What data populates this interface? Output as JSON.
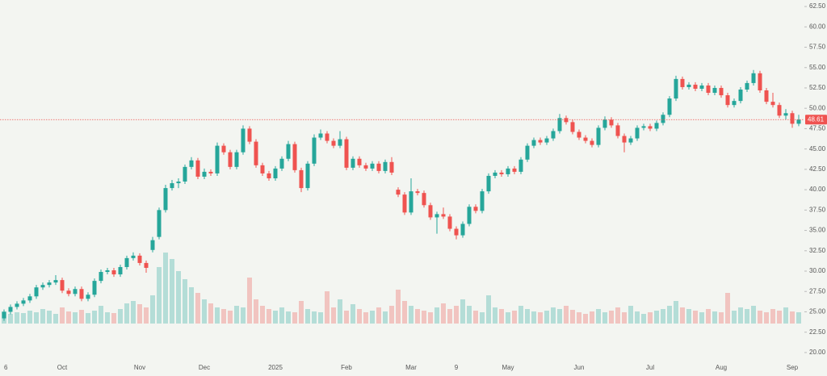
{
  "chart_data": {
    "type": "candlestick",
    "up_color": "#26a69a",
    "down_color": "#ef5350",
    "categories": [
      "6",
      null,
      null,
      null,
      null,
      null,
      null,
      null,
      null,
      "Oct",
      null,
      null,
      null,
      null,
      null,
      null,
      null,
      null,
      null,
      null,
      null,
      "Nov",
      null,
      null,
      null,
      null,
      null,
      null,
      null,
      null,
      null,
      "Dec",
      null,
      null,
      null,
      null,
      null,
      null,
      null,
      null,
      null,
      null,
      "2025",
      null,
      null,
      null,
      null,
      null,
      null,
      null,
      null,
      null,
      null,
      "Feb",
      null,
      null,
      null,
      null,
      null,
      null,
      null,
      null,
      null,
      "Mar",
      null,
      null,
      null,
      null,
      null,
      null,
      "9",
      null,
      null,
      null,
      null,
      null,
      null,
      null,
      "May",
      null,
      null,
      null,
      null,
      null,
      null,
      null,
      null,
      null,
      null,
      "Jun",
      null,
      null,
      null,
      null,
      null,
      null,
      null,
      null,
      null,
      null,
      "Jul",
      null,
      null,
      null,
      null,
      null,
      null,
      null,
      null,
      null,
      null,
      "Aug",
      null,
      null,
      null,
      null,
      null,
      null,
      null,
      null,
      null,
      null,
      "Sep",
      null
    ],
    "ohlc": [
      [
        24.2,
        25.3,
        23.9,
        25.0
      ],
      [
        25.0,
        25.9,
        24.7,
        25.6
      ],
      [
        25.6,
        26.3,
        25.3,
        26.0
      ],
      [
        26.0,
        26.7,
        25.7,
        26.4
      ],
      [
        26.4,
        27.2,
        26.1,
        26.9
      ],
      [
        26.9,
        28.3,
        26.6,
        28.0
      ],
      [
        28.0,
        28.6,
        27.7,
        28.3
      ],
      [
        28.3,
        28.9,
        28.0,
        28.6
      ],
      [
        28.6,
        29.5,
        28.3,
        28.9
      ],
      [
        28.9,
        29.2,
        27.3,
        27.6
      ],
      [
        27.6,
        27.9,
        26.9,
        27.2
      ],
      [
        27.2,
        28.1,
        26.9,
        27.8
      ],
      [
        27.8,
        28.1,
        26.3,
        26.6
      ],
      [
        26.6,
        27.4,
        26.3,
        27.1
      ],
      [
        27.1,
        29.1,
        26.8,
        28.8
      ],
      [
        28.8,
        30.2,
        28.5,
        29.9
      ],
      [
        29.9,
        30.4,
        29.6,
        30.1
      ],
      [
        30.1,
        30.4,
        29.3,
        29.6
      ],
      [
        29.6,
        30.8,
        29.3,
        30.5
      ],
      [
        30.5,
        31.9,
        30.2,
        31.6
      ],
      [
        31.6,
        32.3,
        31.3,
        31.9
      ],
      [
        31.9,
        32.2,
        30.7,
        31.0
      ],
      [
        31.0,
        31.3,
        29.8,
        30.4
      ],
      [
        32.6,
        34.2,
        32.3,
        33.8
      ],
      [
        34.2,
        37.8,
        33.9,
        37.5
      ],
      [
        37.5,
        40.6,
        37.2,
        40.2
      ],
      [
        40.2,
        41.2,
        39.9,
        40.8
      ],
      [
        40.8,
        41.4,
        40.2,
        41.0
      ],
      [
        41.0,
        43.1,
        40.7,
        42.8
      ],
      [
        42.8,
        44.0,
        42.5,
        43.6
      ],
      [
        43.6,
        43.9,
        41.3,
        41.6
      ],
      [
        41.6,
        42.6,
        41.3,
        42.2
      ],
      [
        42.2,
        42.5,
        41.7,
        42.0
      ],
      [
        42.0,
        45.8,
        41.7,
        45.4
      ],
      [
        45.4,
        45.7,
        44.3,
        44.6
      ],
      [
        44.6,
        44.9,
        42.5,
        42.8
      ],
      [
        42.8,
        44.9,
        42.5,
        44.6
      ],
      [
        44.6,
        47.9,
        44.3,
        47.5
      ],
      [
        47.5,
        47.8,
        45.6,
        45.9
      ],
      [
        45.9,
        46.2,
        42.7,
        43.0
      ],
      [
        43.0,
        43.3,
        41.7,
        42.0
      ],
      [
        42.0,
        42.3,
        41.1,
        41.4
      ],
      [
        41.4,
        42.9,
        41.1,
        42.6
      ],
      [
        42.6,
        44.1,
        42.3,
        43.8
      ],
      [
        43.8,
        46.0,
        43.5,
        45.6
      ],
      [
        45.6,
        45.9,
        42.1,
        42.4
      ],
      [
        42.4,
        42.7,
        39.7,
        40.2
      ],
      [
        40.2,
        43.5,
        39.9,
        43.2
      ],
      [
        43.2,
        46.8,
        42.9,
        46.4
      ],
      [
        46.4,
        47.4,
        46.1,
        46.9
      ],
      [
        46.9,
        47.2,
        45.7,
        46.0
      ],
      [
        46.0,
        46.3,
        45.1,
        45.4
      ],
      [
        45.4,
        47.2,
        45.1,
        46.2
      ],
      [
        46.2,
        46.5,
        42.4,
        42.7
      ],
      [
        42.7,
        44.1,
        42.4,
        43.8
      ],
      [
        43.8,
        44.1,
        42.7,
        43.0
      ],
      [
        43.0,
        43.3,
        42.3,
        42.6
      ],
      [
        42.6,
        43.5,
        42.3,
        43.2
      ],
      [
        43.2,
        43.5,
        42.0,
        42.3
      ],
      [
        42.3,
        43.7,
        42.0,
        43.4
      ],
      [
        43.4,
        44.0,
        41.8,
        42.1
      ],
      [
        40.0,
        40.3,
        39.1,
        39.4
      ],
      [
        39.4,
        39.7,
        36.9,
        37.2
      ],
      [
        37.2,
        41.4,
        36.9,
        39.8
      ],
      [
        39.8,
        40.1,
        39.3,
        39.6
      ],
      [
        39.6,
        39.9,
        37.8,
        38.1
      ],
      [
        38.1,
        38.4,
        36.3,
        36.6
      ],
      [
        36.6,
        37.3,
        34.6,
        37.0
      ],
      [
        37.0,
        37.8,
        36.4,
        36.7
      ],
      [
        36.7,
        37.0,
        34.9,
        35.2
      ],
      [
        35.2,
        35.5,
        33.9,
        34.4
      ],
      [
        34.4,
        36.1,
        34.1,
        35.8
      ],
      [
        35.8,
        38.2,
        35.5,
        37.9
      ],
      [
        37.9,
        38.2,
        37.1,
        37.4
      ],
      [
        37.4,
        40.1,
        37.1,
        39.8
      ],
      [
        39.8,
        42.0,
        39.5,
        41.7
      ],
      [
        41.7,
        42.4,
        41.4,
        42.1
      ],
      [
        42.1,
        42.4,
        41.6,
        41.9
      ],
      [
        41.9,
        42.9,
        41.6,
        42.6
      ],
      [
        42.6,
        42.9,
        41.9,
        42.2
      ],
      [
        42.2,
        44.0,
        41.9,
        43.7
      ],
      [
        43.7,
        45.7,
        43.4,
        45.4
      ],
      [
        45.4,
        46.4,
        45.1,
        46.1
      ],
      [
        46.1,
        46.4,
        45.5,
        45.8
      ],
      [
        45.8,
        46.6,
        45.5,
        46.3
      ],
      [
        46.3,
        47.5,
        46.0,
        47.2
      ],
      [
        47.2,
        49.3,
        46.9,
        48.8
      ],
      [
        48.8,
        49.1,
        48.0,
        48.3
      ],
      [
        48.3,
        48.6,
        46.8,
        47.1
      ],
      [
        47.1,
        47.4,
        46.1,
        46.4
      ],
      [
        46.4,
        46.7,
        45.7,
        46.0
      ],
      [
        46.0,
        46.3,
        45.2,
        45.5
      ],
      [
        45.5,
        47.9,
        45.2,
        47.6
      ],
      [
        47.6,
        49.0,
        47.3,
        48.6
      ],
      [
        48.6,
        48.9,
        47.6,
        47.9
      ],
      [
        47.9,
        48.2,
        46.3,
        46.6
      ],
      [
        46.6,
        46.9,
        44.6,
        45.8
      ],
      [
        45.8,
        46.6,
        45.5,
        46.3
      ],
      [
        46.3,
        47.9,
        46.0,
        47.6
      ],
      [
        47.6,
        48.1,
        47.3,
        47.8
      ],
      [
        47.8,
        48.1,
        47.2,
        47.5
      ],
      [
        47.5,
        48.5,
        47.2,
        48.2
      ],
      [
        48.2,
        49.5,
        47.9,
        49.2
      ],
      [
        49.2,
        51.5,
        48.9,
        51.2
      ],
      [
        51.2,
        54.0,
        50.9,
        53.6
      ],
      [
        53.6,
        53.9,
        52.3,
        52.6
      ],
      [
        52.6,
        53.2,
        52.3,
        52.9
      ],
      [
        52.9,
        53.2,
        52.1,
        52.4
      ],
      [
        52.4,
        53.1,
        52.1,
        52.8
      ],
      [
        52.8,
        53.1,
        51.6,
        51.9
      ],
      [
        51.9,
        52.8,
        51.6,
        52.5
      ],
      [
        52.5,
        52.8,
        51.3,
        51.6
      ],
      [
        51.6,
        51.9,
        50.1,
        50.4
      ],
      [
        50.4,
        51.2,
        50.1,
        50.9
      ],
      [
        50.9,
        52.6,
        50.6,
        52.3
      ],
      [
        52.3,
        53.4,
        52.0,
        53.1
      ],
      [
        53.1,
        54.7,
        52.8,
        54.3
      ],
      [
        54.3,
        54.6,
        51.9,
        52.2
      ],
      [
        52.2,
        52.5,
        50.5,
        50.8
      ],
      [
        50.8,
        51.9,
        50.1,
        50.4
      ],
      [
        50.4,
        50.7,
        48.8,
        49.1
      ],
      [
        49.1,
        49.9,
        48.6,
        49.4
      ],
      [
        49.4,
        49.7,
        47.6,
        48.1
      ],
      [
        48.1,
        49.2,
        47.8,
        48.6
      ]
    ],
    "volume": [
      15,
      12,
      14,
      13,
      16,
      14,
      18,
      16,
      12,
      20,
      15,
      14,
      17,
      13,
      16,
      22,
      14,
      13,
      18,
      25,
      28,
      24,
      20,
      35,
      70,
      88,
      80,
      65,
      55,
      45,
      38,
      30,
      25,
      20,
      18,
      16,
      22,
      20,
      57,
      30,
      22,
      18,
      16,
      20,
      15,
      14,
      28,
      18,
      15,
      14,
      40,
      20,
      30,
      16,
      24,
      18,
      14,
      16,
      20,
      15,
      22,
      42,
      28,
      22,
      18,
      16,
      14,
      20,
      25,
      18,
      22,
      30,
      22,
      16,
      14,
      35,
      20,
      18,
      14,
      16,
      22,
      18,
      15,
      14,
      16,
      20,
      18,
      22,
      17,
      14,
      12,
      15,
      18,
      14,
      16,
      20,
      14,
      22,
      15,
      12,
      14,
      16,
      18,
      22,
      28,
      20,
      18,
      16,
      14,
      18,
      15,
      14,
      38,
      16,
      20,
      18,
      22,
      16,
      14,
      18,
      16,
      20,
      15,
      14
    ],
    "volume_lim": [
      0,
      100
    ],
    "ylim": [
      19.1,
      63.3
    ],
    "yticks": [
      {
        "value": 20,
        "label": "20.00"
      },
      {
        "value": 22.5,
        "label": "22.50"
      },
      {
        "value": 25,
        "label": "25.00"
      },
      {
        "value": 27.5,
        "label": "27.50"
      },
      {
        "value": 30,
        "label": "30.00"
      },
      {
        "value": 32.5,
        "label": "32.50"
      },
      {
        "value": 35,
        "label": "35.00"
      },
      {
        "value": 37.5,
        "label": "37.50"
      },
      {
        "value": 40,
        "label": "40.00"
      },
      {
        "value": 42.5,
        "label": "42.50"
      },
      {
        "value": 45,
        "label": "45.00"
      },
      {
        "value": 47.5,
        "label": "47.50"
      },
      {
        "value": 50,
        "label": "50.00"
      },
      {
        "value": 52.5,
        "label": "52.50"
      },
      {
        "value": 55,
        "label": "55.00"
      },
      {
        "value": 57.5,
        "label": "57.50"
      },
      {
        "value": 60,
        "label": "60.00"
      },
      {
        "value": 62.5,
        "label": "62.50"
      }
    ],
    "last_price": 48.61
  }
}
